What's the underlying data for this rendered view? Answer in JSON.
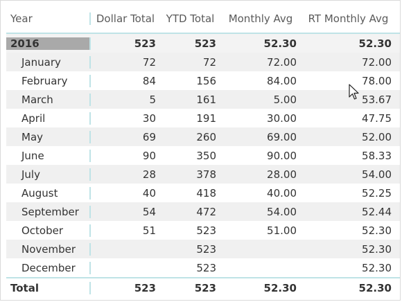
{
  "table": {
    "headers": [
      "Year",
      "Dollar Total",
      "YTD Total",
      "Monthly Avg",
      "RT Monthly Avg"
    ],
    "year_row": {
      "label": "2016",
      "dollar_total": "523",
      "ytd_total": "523",
      "monthly_avg": "52.30",
      "rt_monthly_avg": "52.30"
    },
    "months": [
      {
        "label": "January",
        "dollar_total": "72",
        "ytd_total": "72",
        "monthly_avg": "72.00",
        "rt_monthly_avg": "72.00"
      },
      {
        "label": "February",
        "dollar_total": "84",
        "ytd_total": "156",
        "monthly_avg": "84.00",
        "rt_monthly_avg": "78.00"
      },
      {
        "label": "March",
        "dollar_total": "5",
        "ytd_total": "161",
        "monthly_avg": "5.00",
        "rt_monthly_avg": "53.67"
      },
      {
        "label": "April",
        "dollar_total": "30",
        "ytd_total": "191",
        "monthly_avg": "30.00",
        "rt_monthly_avg": "47.75"
      },
      {
        "label": "May",
        "dollar_total": "69",
        "ytd_total": "260",
        "monthly_avg": "69.00",
        "rt_monthly_avg": "52.00"
      },
      {
        "label": "June",
        "dollar_total": "90",
        "ytd_total": "350",
        "monthly_avg": "90.00",
        "rt_monthly_avg": "58.33"
      },
      {
        "label": "July",
        "dollar_total": "28",
        "ytd_total": "378",
        "monthly_avg": "28.00",
        "rt_monthly_avg": "54.00"
      },
      {
        "label": "August",
        "dollar_total": "40",
        "ytd_total": "418",
        "monthly_avg": "40.00",
        "rt_monthly_avg": "52.25"
      },
      {
        "label": "September",
        "dollar_total": "54",
        "ytd_total": "472",
        "monthly_avg": "54.00",
        "rt_monthly_avg": "52.44"
      },
      {
        "label": "October",
        "dollar_total": "51",
        "ytd_total": "523",
        "monthly_avg": "51.00",
        "rt_monthly_avg": "52.30"
      },
      {
        "label": "November",
        "dollar_total": "",
        "ytd_total": "523",
        "monthly_avg": "",
        "rt_monthly_avg": "52.30"
      },
      {
        "label": "December",
        "dollar_total": "",
        "ytd_total": "523",
        "monthly_avg": "",
        "rt_monthly_avg": "52.30"
      }
    ],
    "total_row": {
      "label": "Total",
      "dollar_total": "523",
      "ytd_total": "523",
      "monthly_avg": "52.30",
      "rt_monthly_avg": "52.30"
    }
  },
  "colors": {
    "accent_line": "#bfe3e6",
    "selected_year": "#a9a9a9",
    "band": "#f0f0f0"
  },
  "cursor": {
    "icon": "mouse-pointer-icon"
  }
}
